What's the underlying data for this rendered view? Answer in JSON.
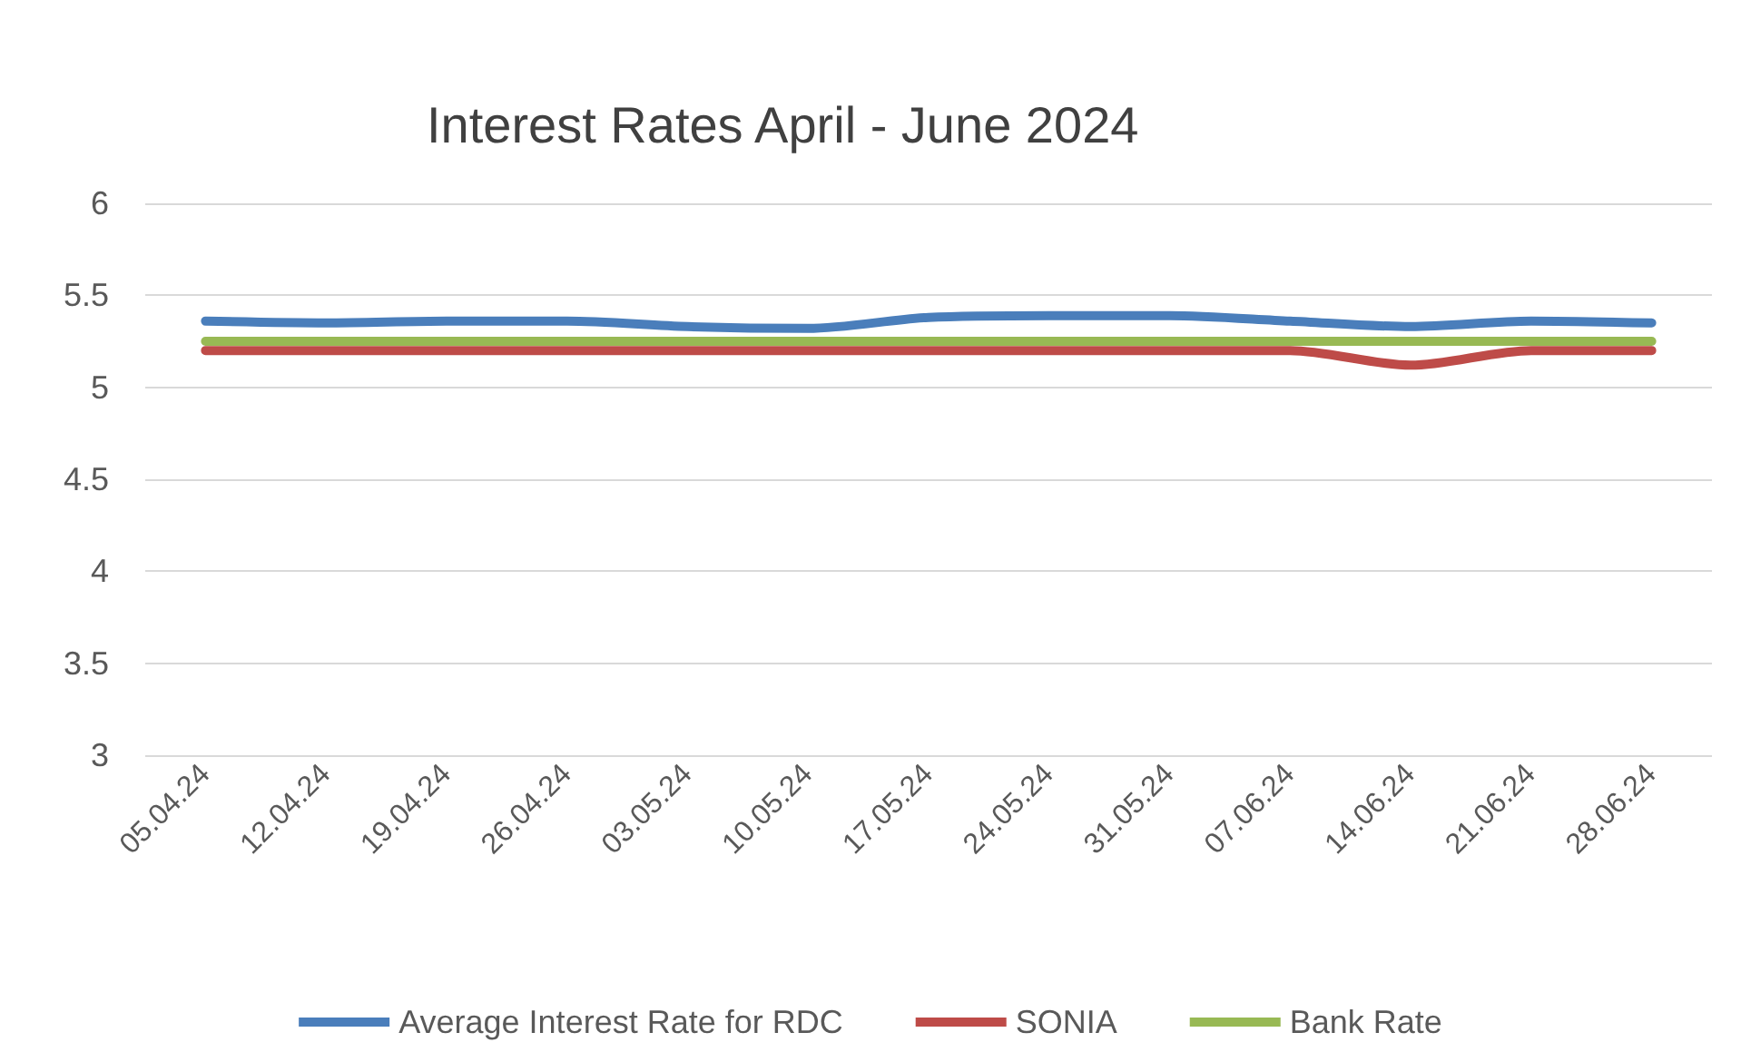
{
  "chart_data": {
    "type": "line",
    "title": "Interest Rates April - June 2024",
    "categories": [
      "05.04.24",
      "12.04.24",
      "19.04.24",
      "26.04.24",
      "03.05.24",
      "10.05.24",
      "17.05.24",
      "24.05.24",
      "31.05.24",
      "07.06.24",
      "14.06.24",
      "21.06.24",
      "28.06.24"
    ],
    "series": [
      {
        "name": "Average Interest Rate for RDC",
        "color": "#4a7ebb",
        "values": [
          5.36,
          5.35,
          5.36,
          5.36,
          5.33,
          5.32,
          5.38,
          5.39,
          5.39,
          5.36,
          5.33,
          5.36,
          5.35
        ]
      },
      {
        "name": "SONIA",
        "color": "#be4b48",
        "values": [
          5.2,
          5.2,
          5.2,
          5.2,
          5.2,
          5.2,
          5.2,
          5.2,
          5.2,
          5.2,
          5.12,
          5.2,
          5.2
        ]
      },
      {
        "name": "Bank Rate",
        "color": "#98b954",
        "values": [
          5.25,
          5.25,
          5.25,
          5.25,
          5.25,
          5.25,
          5.25,
          5.25,
          5.25,
          5.25,
          5.25,
          5.25,
          5.25
        ]
      }
    ],
    "ylim": [
      3,
      6
    ],
    "yticks": [
      3,
      3.5,
      4,
      4.5,
      5,
      5.5,
      6
    ],
    "grid": "y",
    "legend": "bottom",
    "marker": "none",
    "line_style": "solid"
  }
}
